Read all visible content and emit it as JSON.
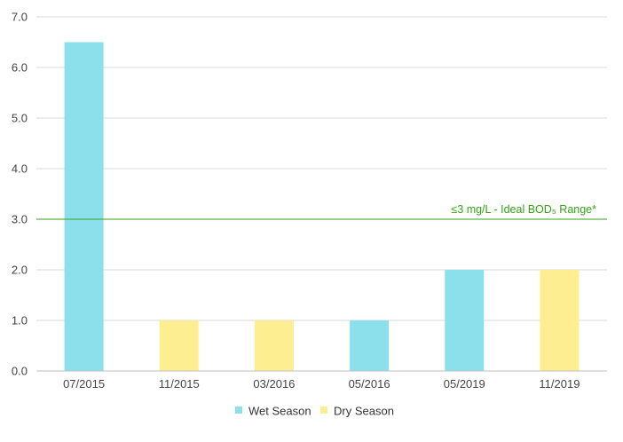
{
  "chart_data": {
    "type": "bar",
    "categories": [
      "07/2015",
      "11/2015",
      "03/2016",
      "05/2016",
      "05/2019",
      "11/2019"
    ],
    "values": [
      6.5,
      1.0,
      1.0,
      1.0,
      2.0,
      2.0
    ],
    "season": [
      "Wet Season",
      "Dry Season",
      "Dry Season",
      "Wet Season",
      "Wet Season",
      "Dry Season"
    ],
    "series": [
      {
        "name": "Wet Season",
        "color": "#8ce0ec"
      },
      {
        "name": "Dry Season",
        "color": "#fdee91"
      }
    ],
    "ylim": [
      0,
      7
    ],
    "yticks": [
      "0.0",
      "1.0",
      "2.0",
      "3.0",
      "4.0",
      "5.0",
      "6.0",
      "7.0"
    ],
    "reference_line": {
      "value": 3.0,
      "label": "≤3 mg/L - Ideal BOD₅ Range*",
      "color": "#33a31a"
    },
    "grid": true,
    "legend_position": "bottom"
  }
}
